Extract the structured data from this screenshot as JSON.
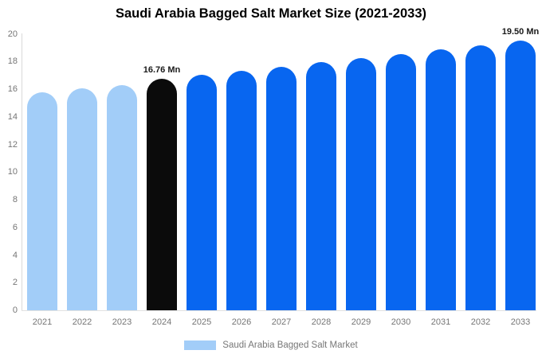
{
  "title": "Saudi Arabia Bagged Salt Market Size (2021-2033)",
  "legend": {
    "label": "Saudi Arabia Bagged Salt Market"
  },
  "annotations": [
    {
      "year": "2024",
      "text": "16.76 Mn"
    },
    {
      "year": "2033",
      "text": "19.50 Mn"
    }
  ],
  "colors": {
    "historical": "#a2cdf8",
    "current": "#0b0b0b",
    "forecast": "#0866f0",
    "axis_line": "#d9d9d9",
    "tick_text": "#757575",
    "annotation_text": "#1a1a1a"
  },
  "chart_data": {
    "type": "bar",
    "title": "Saudi Arabia Bagged Salt Market Size (2021-2033)",
    "categories": [
      "2021",
      "2022",
      "2023",
      "2024",
      "2025",
      "2026",
      "2027",
      "2028",
      "2029",
      "2030",
      "2031",
      "2032",
      "2033"
    ],
    "values": [
      15.76,
      16.05,
      16.31,
      16.76,
      17.05,
      17.33,
      17.63,
      17.93,
      18.23,
      18.54,
      18.86,
      19.18,
      19.5
    ],
    "roles": [
      "historical",
      "historical",
      "historical",
      "current",
      "forecast",
      "forecast",
      "forecast",
      "forecast",
      "forecast",
      "forecast",
      "forecast",
      "forecast",
      "forecast"
    ],
    "value_unit": "Mn",
    "labeled_points": {
      "2024": "16.76 Mn",
      "2033": "19.50 Mn"
    },
    "xlabel": "",
    "ylabel": "",
    "ylim": [
      0,
      20
    ],
    "yticks": [
      0,
      2,
      4,
      6,
      8,
      10,
      12,
      14,
      16,
      18,
      20
    ],
    "grid": false,
    "legend_position": "bottom",
    "series_name": "Saudi Arabia Bagged Salt Market"
  }
}
